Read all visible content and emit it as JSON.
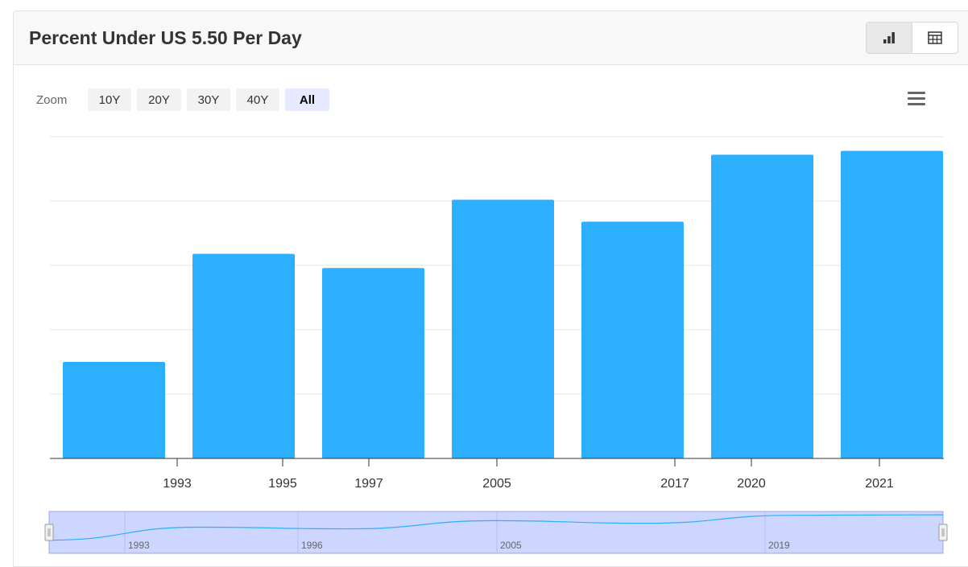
{
  "card": {
    "title": "Percent Under US 5.50 Per Day"
  },
  "toolbar": {
    "chart_view_icon": "bar-chart-icon",
    "table_view_icon": "table-icon"
  },
  "zoom": {
    "label": "Zoom",
    "options": [
      "10Y",
      "20Y",
      "30Y",
      "40Y",
      "All"
    ],
    "selected": "All"
  },
  "colors": {
    "bar": "#2caffe",
    "navigator_fill": "#ccd6ff",
    "navigator_line": "#2caffe"
  },
  "chart_data": {
    "type": "bar",
    "title": "",
    "xlabel": "",
    "ylabel": "",
    "categories": [
      "1993",
      "1995",
      "1997",
      "2005",
      "2017",
      "2020",
      "2021"
    ],
    "values": [
      7.5,
      15.9,
      14.8,
      20.1,
      18.4,
      23.6,
      23.9
    ],
    "ylim": [
      0,
      25
    ],
    "grid": true,
    "legend": false,
    "navigator": {
      "tick_labels": [
        "1993",
        "1996",
        "2005",
        "2019"
      ]
    }
  }
}
